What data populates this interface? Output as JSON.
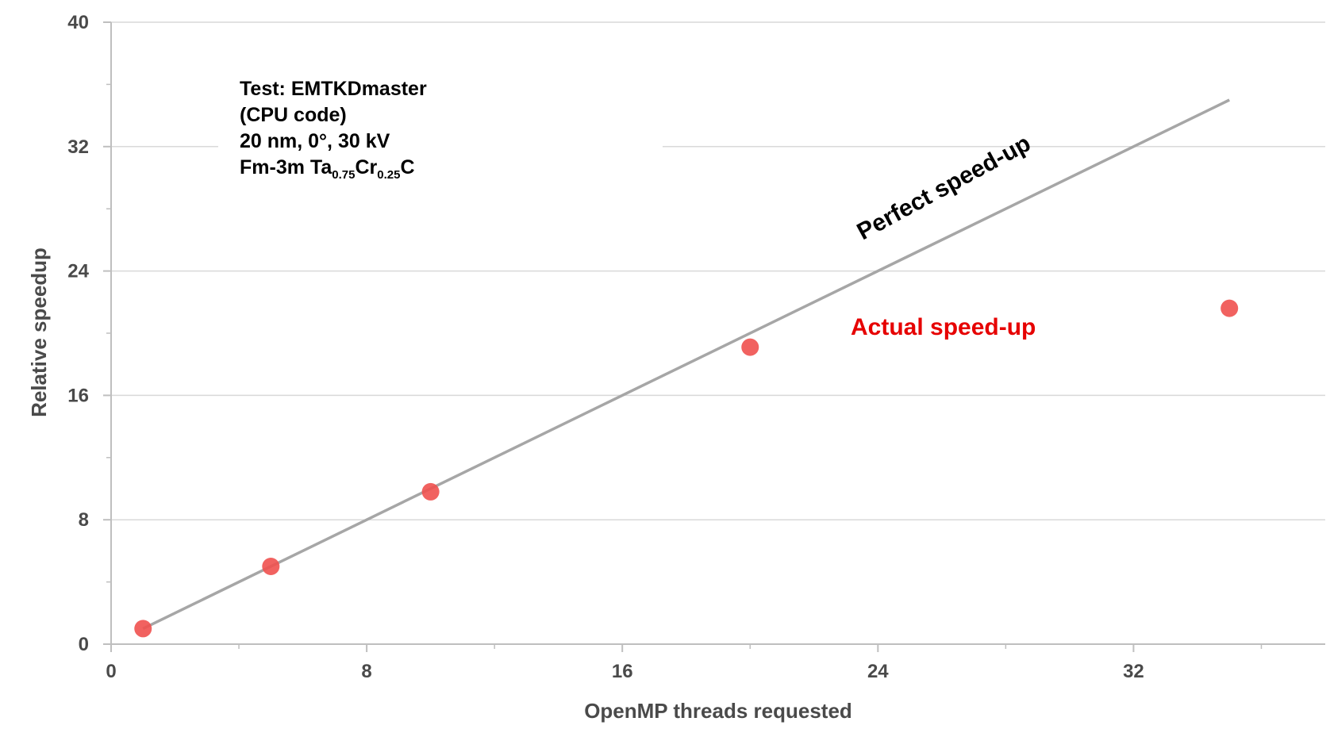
{
  "chart_data": {
    "type": "scatter",
    "xlabel": "OpenMP threads requested",
    "ylabel": "Relative speedup",
    "xlim": [
      0,
      38
    ],
    "ylim": [
      0,
      40
    ],
    "x_ticks": [
      "0",
      "8",
      "16",
      "24",
      "32"
    ],
    "y_ticks": [
      "0",
      "8",
      "16",
      "24",
      "32",
      "40"
    ],
    "grid": "horizontal",
    "annotations": {
      "test_info": [
        {
          "text": "Test: EMTKDmaster"
        },
        {
          "text": "(CPU code)"
        },
        {
          "text": "20 nm, 0°, 30 kV"
        },
        {
          "text": "Fm-3m Ta",
          "parts": [
            {
              "text": "Fm-3m Ta",
              "sub": false
            },
            {
              "text": "0.75",
              "sub": true
            },
            {
              "text": "Cr",
              "sub": false
            },
            {
              "text": "0.25",
              "sub": true
            },
            {
              "text": "C",
              "sub": false
            }
          ]
        }
      ]
    },
    "series": [
      {
        "name": "Perfect speed-up",
        "kind": "line",
        "color": "#a6a6a6",
        "x": [
          1,
          35
        ],
        "y": [
          1,
          35
        ]
      },
      {
        "name": "Actual speed-up",
        "kind": "scatter",
        "color": "#f0514f",
        "label_color": "#e60000",
        "x": [
          1,
          5,
          10,
          20,
          35
        ],
        "y": [
          1,
          5,
          9.8,
          19.1,
          21.6
        ]
      }
    ]
  }
}
